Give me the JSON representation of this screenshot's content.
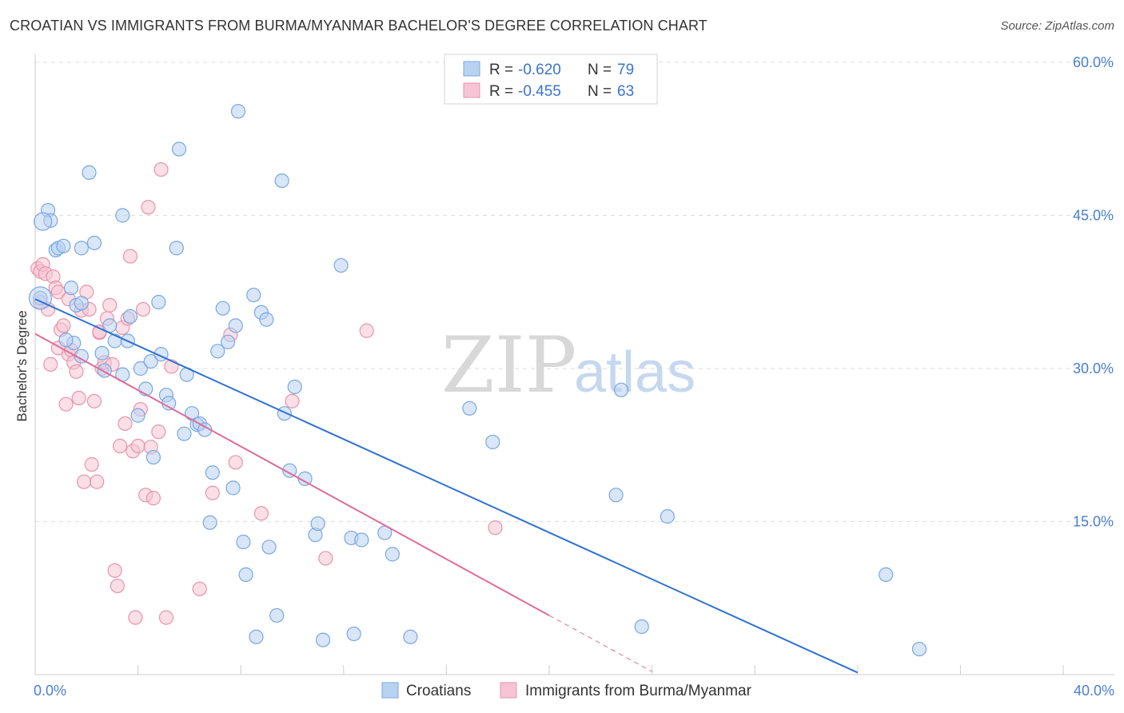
{
  "title": "CROATIAN VS IMMIGRANTS FROM BURMA/MYANMAR BACHELOR'S DEGREE CORRELATION CHART",
  "source": "Source: ZipAtlas.com",
  "watermark": {
    "zip": "ZIP",
    "atlas": "atlas"
  },
  "colors": {
    "blue_fill": "#b8d2f2",
    "blue_stroke": "#7aa7e0",
    "blue_line": "#2f72d0",
    "pink_fill": "#f6c4d4",
    "pink_stroke": "#e993ae",
    "pink_line": "#e06b97",
    "tick_text": "#4a7fd0",
    "grid": "#dddddd"
  },
  "legend": {
    "rows": [
      {
        "r_label": "R = ",
        "r_value": "-0.620",
        "n_label": "N = ",
        "n_value": "79"
      },
      {
        "r_label": "R = ",
        "r_value": "-0.455",
        "n_label": "N = ",
        "n_value": "63"
      }
    ]
  },
  "chart_data": {
    "type": "scatter",
    "ylabel": "Bachelor's Degree",
    "xlim": [
      0,
      40
    ],
    "ylim": [
      0,
      60
    ],
    "x_tick_labels": [
      {
        "value": 0,
        "label": "0.0%"
      },
      {
        "value": 40,
        "label": "40.0%"
      }
    ],
    "y_tick_labels": [
      {
        "value": 15,
        "label": "15.0%"
      },
      {
        "value": 30,
        "label": "30.0%"
      },
      {
        "value": 45,
        "label": "45.0%"
      },
      {
        "value": 60,
        "label": "60.0%"
      }
    ],
    "grid": "horizontal dashed",
    "legend_position": "top-center",
    "series": [
      {
        "name": "Croatians",
        "trend": {
          "x": [
            0,
            32
          ],
          "y": [
            36.8,
            0.2
          ]
        },
        "points": [
          [
            0.2,
            36.9
          ],
          [
            0.5,
            45.5
          ],
          [
            0.6,
            44.5
          ],
          [
            0.8,
            41.6
          ],
          [
            0.9,
            41.8
          ],
          [
            1.1,
            42.0
          ],
          [
            1.4,
            37.9
          ],
          [
            1.5,
            32.5
          ],
          [
            1.6,
            36.2
          ],
          [
            1.8,
            36.4
          ],
          [
            1.8,
            31.2
          ],
          [
            1.8,
            41.8
          ],
          [
            2.1,
            49.2
          ],
          [
            2.3,
            42.3
          ],
          [
            2.6,
            31.5
          ],
          [
            2.7,
            29.8
          ],
          [
            2.9,
            34.2
          ],
          [
            3.1,
            32.7
          ],
          [
            3.4,
            45.0
          ],
          [
            3.4,
            29.4
          ],
          [
            3.6,
            32.7
          ],
          [
            3.7,
            35.1
          ],
          [
            4.0,
            25.4
          ],
          [
            4.1,
            30.0
          ],
          [
            4.3,
            28.0
          ],
          [
            4.5,
            30.7
          ],
          [
            4.6,
            21.3
          ],
          [
            4.8,
            36.5
          ],
          [
            4.9,
            31.4
          ],
          [
            5.1,
            27.4
          ],
          [
            5.2,
            26.6
          ],
          [
            5.5,
            41.8
          ],
          [
            5.6,
            51.5
          ],
          [
            5.8,
            23.6
          ],
          [
            5.9,
            29.4
          ],
          [
            6.1,
            25.6
          ],
          [
            6.3,
            24.5
          ],
          [
            6.4,
            24.6
          ],
          [
            6.6,
            24.0
          ],
          [
            6.8,
            14.9
          ],
          [
            6.9,
            19.8
          ],
          [
            7.1,
            31.7
          ],
          [
            7.3,
            35.9
          ],
          [
            7.5,
            32.6
          ],
          [
            7.7,
            18.3
          ],
          [
            7.8,
            34.2
          ],
          [
            7.9,
            55.2
          ],
          [
            8.1,
            13.0
          ],
          [
            8.2,
            9.8
          ],
          [
            8.5,
            37.2
          ],
          [
            8.6,
            3.7
          ],
          [
            8.8,
            35.5
          ],
          [
            9.0,
            34.8
          ],
          [
            9.1,
            12.5
          ],
          [
            9.4,
            5.8
          ],
          [
            9.6,
            48.4
          ],
          [
            9.7,
            25.6
          ],
          [
            9.9,
            20.0
          ],
          [
            10.1,
            28.2
          ],
          [
            10.5,
            19.2
          ],
          [
            10.9,
            13.7
          ],
          [
            11.0,
            14.8
          ],
          [
            11.2,
            3.4
          ],
          [
            11.9,
            40.1
          ],
          [
            12.3,
            13.4
          ],
          [
            12.4,
            4.0
          ],
          [
            12.7,
            13.2
          ],
          [
            13.6,
            13.9
          ],
          [
            13.9,
            11.8
          ],
          [
            14.6,
            3.7
          ],
          [
            16.9,
            26.1
          ],
          [
            17.8,
            22.8
          ],
          [
            22.6,
            17.6
          ],
          [
            22.8,
            27.9
          ],
          [
            23.6,
            4.7
          ],
          [
            24.6,
            15.5
          ],
          [
            33.1,
            9.8
          ],
          [
            34.4,
            2.5
          ],
          [
            1.2,
            32.8
          ]
        ]
      },
      {
        "name": "Immigrants from Burma/Myanmar",
        "trend": {
          "x": [
            0,
            20
          ],
          "y": [
            33.4,
            5.8
          ]
        },
        "trend_ext": {
          "x": [
            20,
            24
          ],
          "y": [
            5.8,
            0.3
          ]
        },
        "points": [
          [
            0.1,
            39.8
          ],
          [
            0.2,
            39.5
          ],
          [
            0.3,
            40.2
          ],
          [
            0.4,
            39.3
          ],
          [
            0.5,
            35.8
          ],
          [
            0.6,
            30.4
          ],
          [
            0.7,
            39.0
          ],
          [
            0.8,
            37.9
          ],
          [
            0.9,
            37.5
          ],
          [
            0.9,
            32.0
          ],
          [
            1.0,
            33.8
          ],
          [
            1.1,
            34.2
          ],
          [
            1.2,
            26.5
          ],
          [
            1.3,
            31.4
          ],
          [
            1.4,
            31.8
          ],
          [
            1.5,
            30.6
          ],
          [
            1.6,
            29.7
          ],
          [
            1.7,
            27.1
          ],
          [
            1.8,
            35.7
          ],
          [
            1.9,
            18.9
          ],
          [
            2.0,
            37.5
          ],
          [
            2.1,
            35.8
          ],
          [
            2.2,
            20.6
          ],
          [
            2.3,
            26.8
          ],
          [
            2.4,
            18.9
          ],
          [
            2.5,
            33.5
          ],
          [
            2.6,
            30.0
          ],
          [
            2.7,
            30.6
          ],
          [
            2.8,
            34.9
          ],
          [
            2.9,
            36.2
          ],
          [
            3.0,
            30.4
          ],
          [
            3.1,
            10.2
          ],
          [
            3.2,
            8.7
          ],
          [
            3.3,
            22.4
          ],
          [
            3.4,
            34.0
          ],
          [
            3.5,
            24.6
          ],
          [
            3.6,
            34.9
          ],
          [
            3.7,
            41.0
          ],
          [
            3.8,
            21.9
          ],
          [
            3.9,
            5.6
          ],
          [
            4.0,
            22.4
          ],
          [
            4.1,
            26.0
          ],
          [
            4.2,
            35.8
          ],
          [
            4.3,
            17.6
          ],
          [
            4.4,
            45.8
          ],
          [
            4.5,
            22.3
          ],
          [
            4.6,
            17.3
          ],
          [
            4.8,
            23.8
          ],
          [
            4.9,
            49.5
          ],
          [
            5.1,
            5.6
          ],
          [
            5.3,
            30.2
          ],
          [
            6.4,
            8.4
          ],
          [
            6.9,
            17.8
          ],
          [
            7.6,
            33.3
          ],
          [
            7.8,
            20.8
          ],
          [
            8.8,
            15.8
          ],
          [
            10.0,
            26.8
          ],
          [
            11.3,
            11.4
          ],
          [
            12.9,
            33.7
          ],
          [
            17.9,
            14.4
          ],
          [
            0.2,
            36.5
          ],
          [
            1.3,
            36.8
          ],
          [
            2.5,
            33.6
          ]
        ]
      }
    ]
  }
}
